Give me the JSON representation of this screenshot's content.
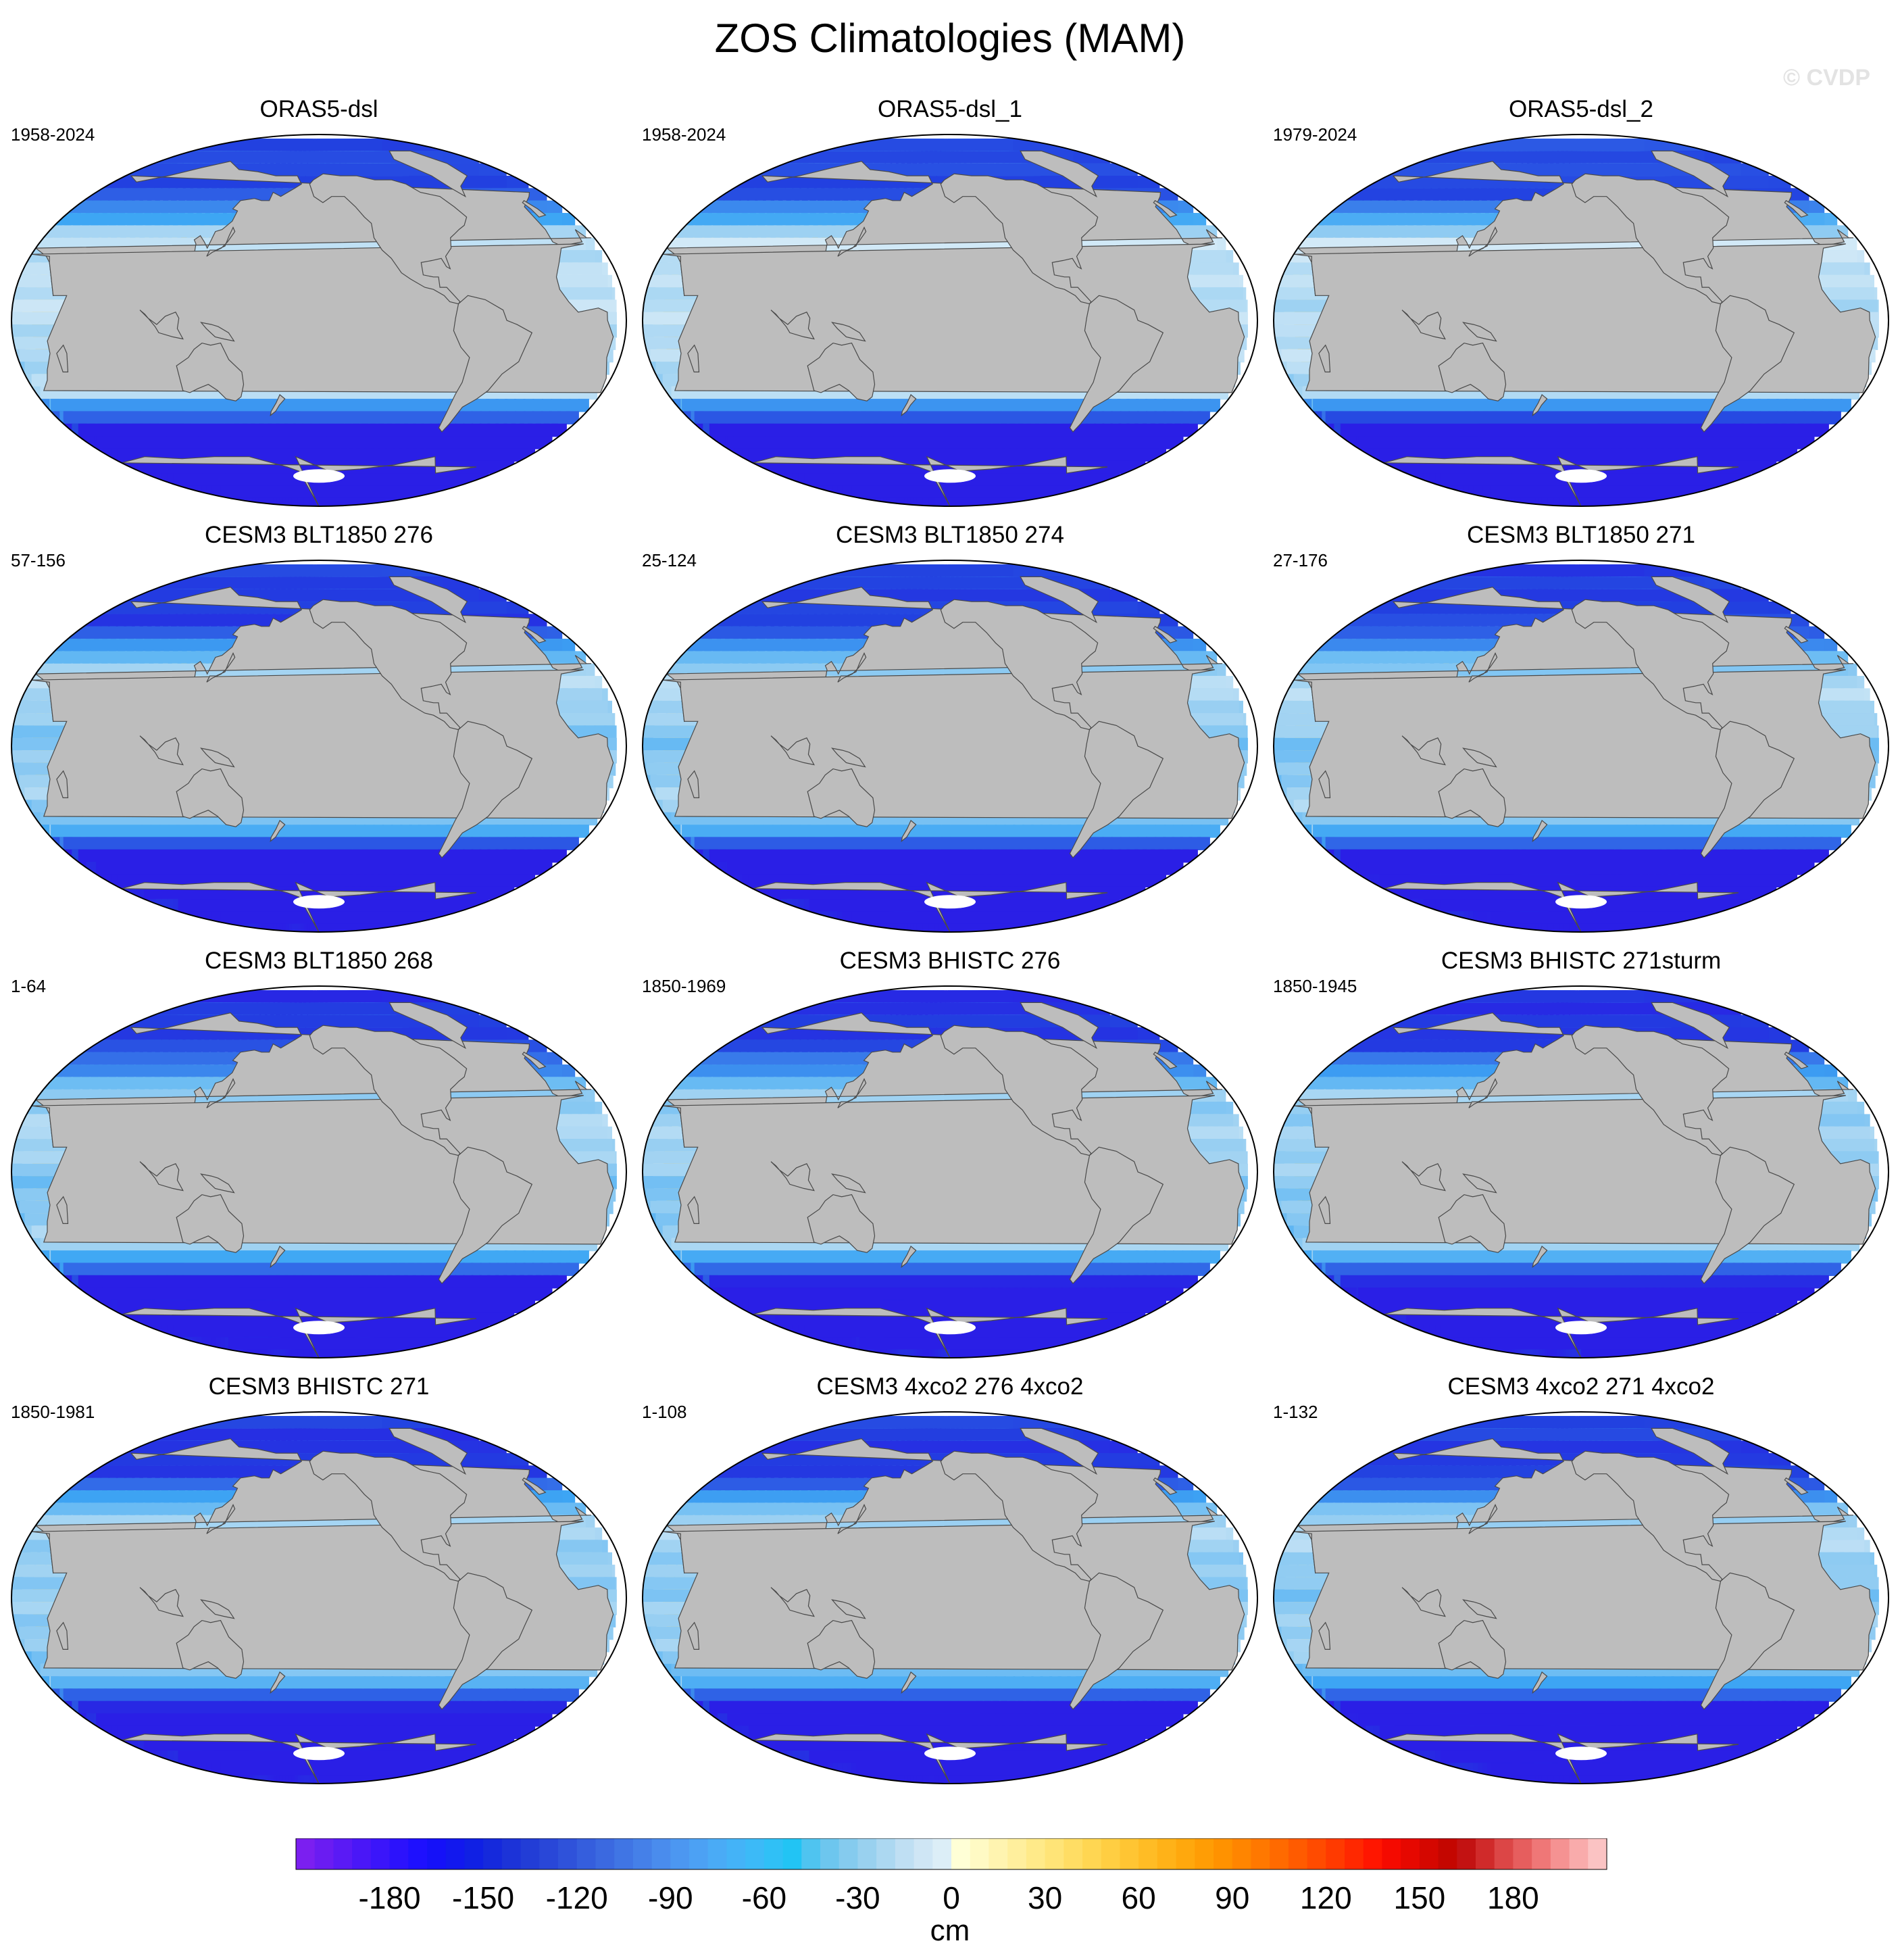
{
  "figure": {
    "title": "ZOS Climatologies (MAM)",
    "watermark": "© CVDP"
  },
  "colors": {
    "land": "#bdbdbd",
    "coast": "#4a4a4a",
    "ice": "#ffffff"
  },
  "panels": [
    {
      "title": "ORAS5-dsl",
      "period": "1958-2024"
    },
    {
      "title": "ORAS5-dsl_1",
      "period": "1958-2024"
    },
    {
      "title": "ORAS5-dsl_2",
      "period": "1979-2024"
    },
    {
      "title": "CESM3 BLT1850 276",
      "period": "57-156"
    },
    {
      "title": "CESM3 BLT1850 274",
      "period": "25-124"
    },
    {
      "title": "CESM3 BLT1850 271",
      "period": "27-176"
    },
    {
      "title": "CESM3 BLT1850 268",
      "period": "1-64"
    },
    {
      "title": "CESM3 BHISTC 276",
      "period": "1850-1969"
    },
    {
      "title": "CESM3 BHISTC 271sturm",
      "period": "1850-1945"
    },
    {
      "title": "CESM3 BHISTC 271",
      "period": "1850-1981"
    },
    {
      "title": "CESM3 4xco2 276 4xco2",
      "period": "1-108"
    },
    {
      "title": "CESM3 4xco2 271 4xco2",
      "period": "1-132"
    }
  ],
  "colorbar": {
    "units": "cm",
    "range": [
      -210,
      210
    ],
    "tick_labels": [
      "-180",
      "-150",
      "-120",
      "-90",
      "-60",
      "-30",
      "0",
      "30",
      "60",
      "90",
      "120",
      "150",
      "180"
    ],
    "tick_values": [
      -180,
      -150,
      -120,
      -90,
      -60,
      -30,
      0,
      30,
      60,
      90,
      120,
      150,
      180
    ],
    "colors": [
      "#7b1ff0",
      "#6a1cf2",
      "#5a1af5",
      "#4a17f7",
      "#3b15fa",
      "#2c12fc",
      "#1e10fe",
      "#1511f8",
      "#1218ee",
      "#1020e4",
      "#1529dc",
      "#1c33d8",
      "#223dd6",
      "#2947d8",
      "#2f52da",
      "#355edd",
      "#3b69e0",
      "#4075e4",
      "#4580e8",
      "#4a8ced",
      "#4c97f1",
      "#4ca1f4",
      "#4aabf6",
      "#44b3f7",
      "#3cbaf7",
      "#30c0f6",
      "#22c4f4",
      "#4fc4f0",
      "#6dc6ee",
      "#85cbee",
      "#99d1ef",
      "#acd8f1",
      "#bfdff3",
      "#cfe6f5",
      "#dceef7",
      "#ffffd6",
      "#fffac4",
      "#fff4b0",
      "#ffef9d",
      "#ffea89",
      "#ffe477",
      "#ffdd64",
      "#ffd652",
      "#ffce42",
      "#ffc533",
      "#ffbc25",
      "#ffb218",
      "#ffa80d",
      "#ff9d05",
      "#ff9200",
      "#ff8500",
      "#ff7800",
      "#ff6a00",
      "#ff5b00",
      "#ff4b00",
      "#ff3a00",
      "#ff2800",
      "#ff1600",
      "#f50a00",
      "#e60800",
      "#d50700",
      "#c40600",
      "#c31212",
      "#d02a2a",
      "#dc4646",
      "#e65e5e",
      "#ef7777",
      "#f59292",
      "#f9abab",
      "#fbc3c3"
    ]
  }
}
